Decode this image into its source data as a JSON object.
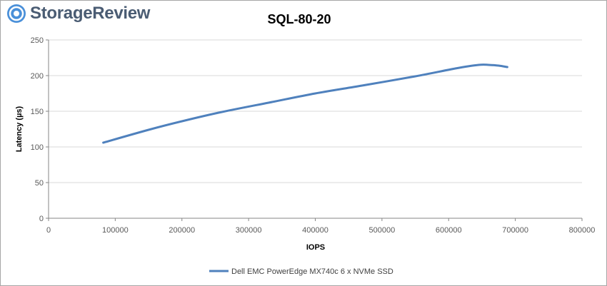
{
  "brand": {
    "name": "StorageReview",
    "text_color": "#4a5c73",
    "mark_color": "#4a90d9"
  },
  "chart_data": {
    "type": "line",
    "title": "SQL-80-20",
    "xlabel": "IOPS",
    "ylabel": "Latency (µs)",
    "xlim": [
      0,
      800000
    ],
    "ylim": [
      0,
      250
    ],
    "x_ticks": [
      "0",
      "100000",
      "200000",
      "300000",
      "400000",
      "500000",
      "600000",
      "700000",
      "800000"
    ],
    "y_ticks": [
      "0",
      "50",
      "100",
      "150",
      "200",
      "250"
    ],
    "grid": "horizontal",
    "legend_position": "bottom",
    "series": [
      {
        "name": "Dell EMC PowerEdge MX740c 6 x NVMe SSD",
        "color": "#4f81bd",
        "x": [
          82000,
          150000,
          200000,
          260000,
          330000,
          400000,
          470000,
          550000,
          610000,
          645000,
          660000,
          675000,
          688000
        ],
        "y": [
          106,
          124,
          136,
          149,
          162,
          175,
          186,
          199,
          210,
          215,
          215,
          214,
          212
        ]
      }
    ]
  }
}
